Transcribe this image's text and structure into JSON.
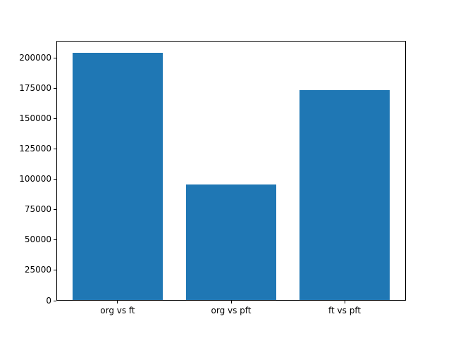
{
  "chart_data": {
    "type": "bar",
    "categories": [
      "org vs ft",
      "org vs pft",
      "ft vs pft"
    ],
    "values": [
      204000,
      95000,
      173000
    ],
    "title": "",
    "xlabel": "",
    "ylabel": "",
    "ylim": [
      0,
      214200
    ],
    "yticks": [
      0,
      25000,
      50000,
      75000,
      100000,
      125000,
      150000,
      175000,
      200000
    ],
    "bar_color": "#1f77b4",
    "grid": false,
    "legend": null,
    "background_color": "#ffffff",
    "axis_color": "#000000"
  }
}
